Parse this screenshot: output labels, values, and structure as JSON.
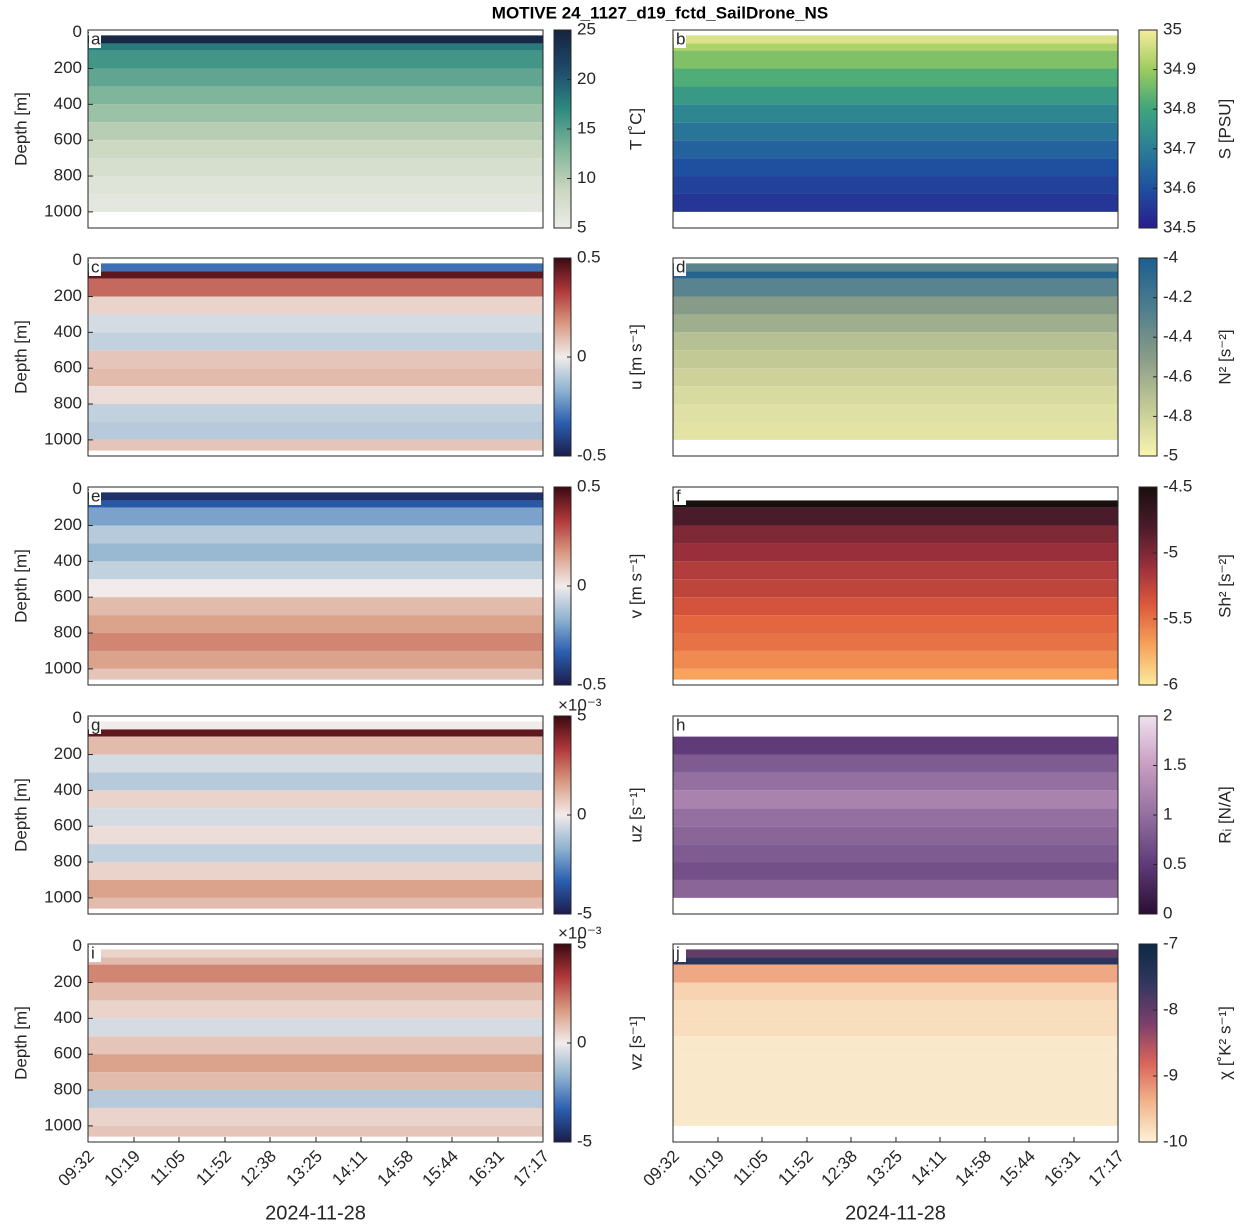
{
  "title": "MOTIVE 24_1127_d19_fctd_SailDrone_NS",
  "chart_data": [
    {
      "type": "heatmap",
      "panel": "a",
      "ylabel": "Depth [m]",
      "xlim": [
        572,
        1037
      ],
      "ylim": [
        -15,
        1090
      ],
      "yticks": [
        0,
        200,
        400,
        600,
        800,
        1000
      ],
      "depth_bins": [
        15,
        60,
        100,
        200,
        300,
        400,
        500,
        600,
        700,
        800,
        900,
        1000,
        1060
      ],
      "values": [
        24.5,
        18,
        16,
        14.5,
        13,
        11.5,
        10,
        8.5,
        7.5,
        6.5,
        6,
        null
      ],
      "colorbar": {
        "label": "T [˚C]",
        "clim": [
          5,
          25
        ],
        "ticks": [
          5,
          10,
          15,
          20,
          25
        ],
        "colors": [
          "#ececea",
          "#c9d6bd",
          "#7fb59a",
          "#2e8a80",
          "#1e4a6b",
          "#16243f"
        ]
      }
    },
    {
      "type": "heatmap",
      "panel": "b",
      "xlim": [
        572,
        1037
      ],
      "ylim": [
        -15,
        1090
      ],
      "depth_bins": [
        15,
        60,
        100,
        200,
        300,
        400,
        500,
        600,
        700,
        800,
        900,
        1000,
        1060
      ],
      "values": [
        34.97,
        34.92,
        34.87,
        34.82,
        34.77,
        34.72,
        34.68,
        34.64,
        34.6,
        34.57,
        34.55,
        null
      ],
      "colorbar": {
        "label": "S [PSU]",
        "clim": [
          34.5,
          35
        ],
        "ticks": [
          34.5,
          34.6,
          34.7,
          34.8,
          34.9,
          35
        ],
        "colors": [
          "#2a1d8f",
          "#1f50a0",
          "#2a7e96",
          "#3ea57d",
          "#9ccb5e",
          "#f7ec9b"
        ]
      }
    },
    {
      "type": "heatmap",
      "panel": "c",
      "ylabel": "Depth [m]",
      "xlim": [
        572,
        1037
      ],
      "ylim": [
        -15,
        1090
      ],
      "yticks": [
        0,
        200,
        400,
        600,
        800,
        1000
      ],
      "depth_bins": [
        15,
        60,
        100,
        200,
        300,
        400,
        500,
        600,
        700,
        800,
        900,
        1000,
        1060
      ],
      "values": [
        -0.3,
        0.45,
        0.25,
        0.05,
        -0.05,
        -0.08,
        0.08,
        0.1,
        0.03,
        -0.08,
        -0.1,
        0.08
      ],
      "colorbar": {
        "label": "u [m s⁻¹]",
        "clim": [
          -0.5,
          0.5
        ],
        "ticks": [
          -0.5,
          0,
          0.5
        ],
        "colors": [
          "#1b1d4b",
          "#2b5fb0",
          "#8fb3d0",
          "#f1eceb",
          "#d99a82",
          "#b0383b",
          "#3c0911"
        ]
      }
    },
    {
      "type": "heatmap",
      "panel": "d",
      "xlim": [
        572,
        1037
      ],
      "ylim": [
        -15,
        1090
      ],
      "depth_bins": [
        15,
        60,
        100,
        200,
        300,
        400,
        500,
        600,
        700,
        800,
        900,
        1000,
        1060
      ],
      "values": [
        -4.3,
        -4.05,
        -4.3,
        -4.5,
        -4.6,
        -4.7,
        -4.75,
        -4.8,
        -4.85,
        -4.88,
        -4.9,
        null
      ],
      "colorbar": {
        "label": "N² [s⁻²]",
        "clim": [
          -5,
          -4
        ],
        "ticks": [
          -5,
          -4.8,
          -4.6,
          -4.4,
          -4.2,
          -4
        ],
        "colors": [
          "#f8f5b0",
          "#c3c995",
          "#879c88",
          "#4d7d8f",
          "#1b5f8f"
        ]
      }
    },
    {
      "type": "heatmap",
      "panel": "e",
      "ylabel": "Depth [m]",
      "xlim": [
        572,
        1037
      ],
      "ylim": [
        -15,
        1090
      ],
      "yticks": [
        0,
        200,
        400,
        600,
        800,
        1000
      ],
      "depth_bins": [
        15,
        60,
        100,
        200,
        300,
        400,
        500,
        600,
        700,
        800,
        900,
        1000,
        1060
      ],
      "values": [
        -0.45,
        -0.35,
        -0.2,
        -0.1,
        -0.15,
        -0.08,
        0,
        0.1,
        0.15,
        0.2,
        0.15,
        0.08
      ],
      "colorbar": {
        "label": "v [m s⁻¹]",
        "clim": [
          -0.5,
          0.5
        ],
        "ticks": [
          -0.5,
          0,
          0.5
        ],
        "colors": [
          "#1b1d4b",
          "#2b5fb0",
          "#8fb3d0",
          "#f1eceb",
          "#d99a82",
          "#b0383b",
          "#3c0911"
        ]
      }
    },
    {
      "type": "heatmap",
      "panel": "f",
      "xlim": [
        572,
        1037
      ],
      "ylim": [
        -15,
        1090
      ],
      "depth_bins": [
        15,
        60,
        100,
        200,
        300,
        400,
        500,
        600,
        700,
        800,
        900,
        1000,
        1060
      ],
      "values": [
        null,
        -4.5,
        -4.8,
        -5,
        -5.1,
        -5.2,
        -5.25,
        -5.35,
        -5.45,
        -5.5,
        -5.6,
        -5.7
      ],
      "colorbar": {
        "label": "Sh² [s⁻²]",
        "clim": [
          -6,
          -4.5
        ],
        "ticks": [
          -6,
          -5.5,
          -5,
          -4.5
        ],
        "colors": [
          "#fbea9c",
          "#f7a35b",
          "#df5a3c",
          "#9a2f3c",
          "#4a1b2a",
          "#1a0f0f"
        ]
      }
    },
    {
      "type": "heatmap",
      "panel": "g",
      "ylabel": "Depth [m]",
      "xlim": [
        572,
        1037
      ],
      "ylim": [
        -15,
        1090
      ],
      "yticks": [
        0,
        200,
        400,
        600,
        800,
        1000
      ],
      "depth_bins": [
        15,
        60,
        100,
        200,
        300,
        400,
        500,
        600,
        700,
        800,
        900,
        1000,
        1060
      ],
      "values": [
        0,
        4.5,
        1,
        -0.5,
        -1,
        0.5,
        -0.5,
        0.3,
        -0.8,
        0.5,
        1.5,
        1
      ],
      "colorbar": {
        "label": "uz [s⁻¹]",
        "exponent": "×10⁻³",
        "clim": [
          -5,
          5
        ],
        "ticks": [
          -5,
          0,
          5
        ],
        "colors": [
          "#1b1d4b",
          "#2b5fb0",
          "#8fb3d0",
          "#f1eceb",
          "#d99a82",
          "#b0383b",
          "#3c0911"
        ]
      }
    },
    {
      "type": "heatmap",
      "panel": "h",
      "xlim": [
        572,
        1037
      ],
      "ylim": [
        -15,
        1090
      ],
      "depth_bins": [
        15,
        60,
        100,
        200,
        300,
        400,
        500,
        600,
        700,
        800,
        900,
        1000,
        1060
      ],
      "values": [
        null,
        null,
        0.5,
        0.8,
        1,
        1.2,
        1,
        0.9,
        0.8,
        0.7,
        0.9,
        null
      ],
      "colorbar": {
        "label": "Rᵢ [N/A]",
        "clim": [
          0,
          2
        ],
        "ticks": [
          0,
          0.5,
          1,
          1.5,
          2
        ],
        "colors": [
          "#2a0e33",
          "#5f3b7a",
          "#93709f",
          "#c99cc1",
          "#efe2ee"
        ]
      }
    },
    {
      "type": "heatmap",
      "panel": "i",
      "ylabel": "Depth [m]",
      "xlabel": "2024-11-28",
      "xlim": [
        572,
        1037
      ],
      "ylim": [
        -15,
        1090
      ],
      "yticks": [
        0,
        200,
        400,
        600,
        800,
        1000
      ],
      "xticks": [
        {
          "value": 572,
          "label": "09:32"
        },
        {
          "value": 619,
          "label": "10:19"
        },
        {
          "value": 665,
          "label": "11:05"
        },
        {
          "value": 712,
          "label": "11:52"
        },
        {
          "value": 758,
          "label": "12:38"
        },
        {
          "value": 805,
          "label": "13:25"
        },
        {
          "value": 851,
          "label": "14:11"
        },
        {
          "value": 898,
          "label": "14:58"
        },
        {
          "value": 944,
          "label": "15:44"
        },
        {
          "value": 991,
          "label": "16:31"
        },
        {
          "value": 1037,
          "label": "17:17"
        }
      ],
      "depth_bins": [
        15,
        60,
        100,
        200,
        300,
        400,
        500,
        600,
        700,
        800,
        900,
        1000,
        1060
      ],
      "values": [
        0.5,
        1,
        2,
        1,
        0.5,
        -0.5,
        0.8,
        1.5,
        1,
        -1,
        0.5,
        0.8
      ],
      "colorbar": {
        "label": "vz [s⁻¹]",
        "exponent": "×10⁻³",
        "clim": [
          -5,
          5
        ],
        "ticks": [
          -5,
          0,
          5
        ],
        "colors": [
          "#1b1d4b",
          "#2b5fb0",
          "#8fb3d0",
          "#f1eceb",
          "#d99a82",
          "#b0383b",
          "#3c0911"
        ]
      }
    },
    {
      "type": "heatmap",
      "panel": "j",
      "xlabel": "2024-11-28",
      "xlim": [
        572,
        1037
      ],
      "ylim": [
        -15,
        1090
      ],
      "xticks": [
        {
          "value": 572,
          "label": "09:32"
        },
        {
          "value": 619,
          "label": "10:19"
        },
        {
          "value": 665,
          "label": "11:05"
        },
        {
          "value": 712,
          "label": "11:52"
        },
        {
          "value": 758,
          "label": "12:38"
        },
        {
          "value": 805,
          "label": "13:25"
        },
        {
          "value": 851,
          "label": "14:11"
        },
        {
          "value": 898,
          "label": "14:58"
        },
        {
          "value": 944,
          "label": "15:44"
        },
        {
          "value": 991,
          "label": "16:31"
        },
        {
          "value": 1037,
          "label": "17:17"
        }
      ],
      "depth_bins": [
        15,
        60,
        100,
        200,
        300,
        400,
        500,
        600,
        700,
        800,
        900,
        1000,
        1060
      ],
      "values": [
        -8,
        -7.5,
        -9.3,
        -9.7,
        -9.8,
        -9.8,
        -9.9,
        -9.9,
        -9.9,
        -9.9,
        -9.9,
        null
      ],
      "colorbar": {
        "label": "χ [˚K² s⁻¹]",
        "clim": [
          -10,
          -7
        ],
        "ticks": [
          -10,
          -9,
          -8,
          -7
        ],
        "colors": [
          "#fcf2d7",
          "#f2b58c",
          "#d9645b",
          "#7c3f6c",
          "#32365f",
          "#0a2a44"
        ]
      }
    }
  ]
}
